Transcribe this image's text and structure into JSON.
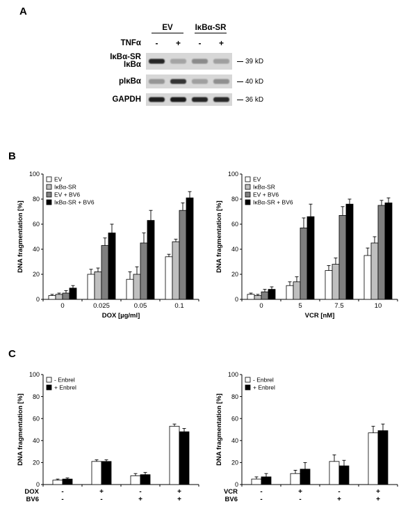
{
  "panels": {
    "a": {
      "label": "A"
    },
    "b": {
      "label": "B"
    },
    "c": {
      "label": "C"
    }
  },
  "blot": {
    "group_labels": [
      "EV",
      "IκBα-SR"
    ],
    "tnf_label": "TNFα",
    "tnf_signs": [
      "-",
      "+",
      "-",
      "+"
    ],
    "rows": [
      {
        "labels": [
          "IκBα-SR",
          "IκBα"
        ],
        "size": "39 kD",
        "intensities": [
          0.92,
          0.28,
          0.4,
          0.3
        ]
      },
      {
        "labels": [
          "pIκBα"
        ],
        "size": "40 kD",
        "intensities": [
          0.35,
          0.85,
          0.3,
          0.38
        ]
      },
      {
        "labels": [
          "GAPDH"
        ],
        "size": "36 kD",
        "intensities": [
          0.95,
          0.97,
          0.92,
          0.9
        ]
      }
    ]
  },
  "chart_data": [
    {
      "id": "dox-dose-response",
      "type": "bar",
      "ylabel": "DNA fragmentation [%]",
      "xlabel": "DOX [µg/ml]",
      "ylim": [
        0,
        100
      ],
      "ytick_step": 20,
      "legend_position": "top-left",
      "categories": [
        "0",
        "0.025",
        "0.05",
        "0.1"
      ],
      "series": [
        {
          "name": "EV",
          "color": "#ffffff",
          "values": [
            3,
            20,
            16,
            34
          ],
          "errors": [
            1,
            4,
            6,
            2
          ]
        },
        {
          "name": "IκBα-SR",
          "color": "#bfbfbf",
          "values": [
            4,
            22,
            20,
            46
          ],
          "errors": [
            1,
            3,
            6,
            2
          ]
        },
        {
          "name": "EV + BV6",
          "color": "#7f7f7f",
          "values": [
            5,
            43,
            45,
            71
          ],
          "errors": [
            2,
            6,
            8,
            6
          ]
        },
        {
          "name": "IκBα-SR + BV6",
          "color": "#000000",
          "values": [
            9,
            53,
            63,
            81
          ],
          "errors": [
            2,
            7,
            8,
            5
          ]
        }
      ]
    },
    {
      "id": "vcr-dose-response",
      "type": "bar",
      "ylabel": "DNA fragmentation [%]",
      "xlabel": "VCR [nM]",
      "ylim": [
        0,
        100
      ],
      "ytick_step": 20,
      "legend_position": "top-left",
      "categories": [
        "0",
        "5",
        "7.5",
        "10"
      ],
      "series": [
        {
          "name": "EV",
          "color": "#ffffff",
          "values": [
            4,
            11,
            23,
            35
          ],
          "errors": [
            1,
            3,
            4,
            6
          ]
        },
        {
          "name": "IκBα-SR",
          "color": "#bfbfbf",
          "values": [
            3,
            14,
            28,
            45
          ],
          "errors": [
            1,
            4,
            5,
            5
          ]
        },
        {
          "name": "EV + BV6",
          "color": "#7f7f7f",
          "values": [
            6,
            57,
            67,
            75
          ],
          "errors": [
            2,
            8,
            7,
            4
          ]
        },
        {
          "name": "IκBα-SR + BV6",
          "color": "#000000",
          "values": [
            8,
            66,
            76,
            77
          ],
          "errors": [
            2,
            10,
            4,
            4
          ]
        }
      ]
    },
    {
      "id": "dox-enbrel",
      "type": "bar",
      "ylabel": "DNA fragmentation [%]",
      "ylim": [
        0,
        100
      ],
      "ytick_step": 20,
      "legend_position": "top-left",
      "xrows": [
        {
          "label": "DOX",
          "signs": [
            "-",
            "+",
            "-",
            "+"
          ]
        },
        {
          "label": "BV6",
          "signs": [
            "-",
            "-",
            "+",
            "+"
          ]
        }
      ],
      "series": [
        {
          "name": "- Enbrel",
          "color": "#ffffff",
          "values": [
            4,
            21,
            8,
            53
          ],
          "errors": [
            1,
            1.5,
            2,
            2
          ]
        },
        {
          "name": "+ Enbrel",
          "color": "#000000",
          "values": [
            5,
            21,
            9,
            48
          ],
          "errors": [
            1,
            1.5,
            2,
            3
          ]
        }
      ]
    },
    {
      "id": "vcr-enbrel",
      "type": "bar",
      "ylabel": "DNA fragmentation [%]",
      "ylim": [
        0,
        100
      ],
      "ytick_step": 20,
      "legend_position": "top-left",
      "xrows": [
        {
          "label": "VCR",
          "signs": [
            "-",
            "+",
            "-",
            "+"
          ]
        },
        {
          "label": "BV6",
          "signs": [
            "-",
            "-",
            "+",
            "+"
          ]
        }
      ],
      "series": [
        {
          "name": "- Enbrel",
          "color": "#ffffff",
          "values": [
            5,
            10,
            21,
            47
          ],
          "errors": [
            2,
            3,
            6,
            6
          ]
        },
        {
          "name": "+ Enbrel",
          "color": "#000000",
          "values": [
            7,
            14,
            17,
            49
          ],
          "errors": [
            3,
            6,
            5,
            6
          ]
        }
      ]
    }
  ]
}
